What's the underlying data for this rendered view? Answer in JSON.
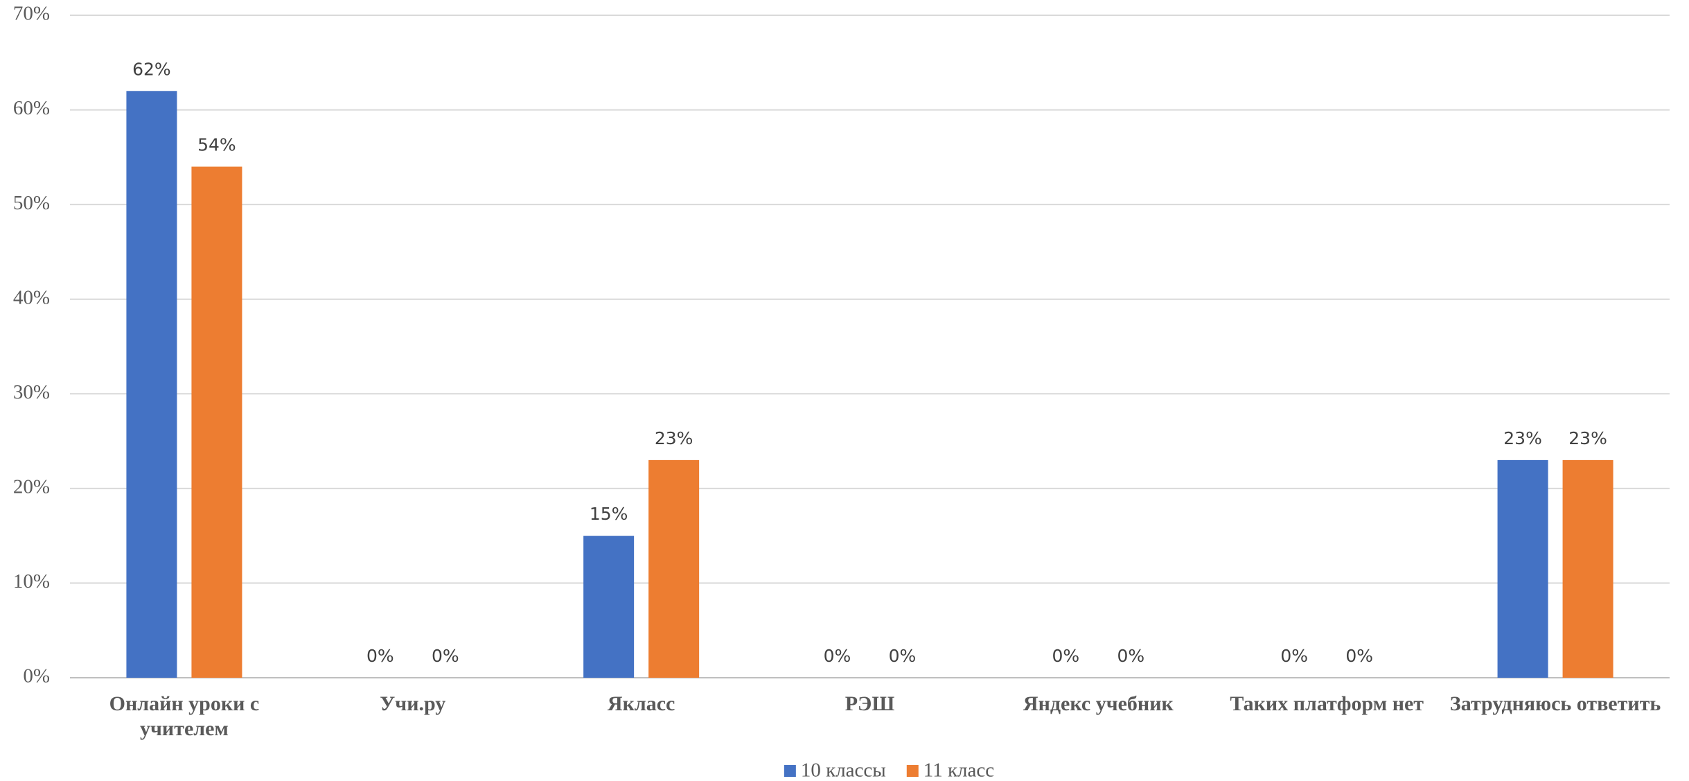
{
  "chart_data": {
    "type": "bar",
    "categories": [
      "Онлайн уроки с учителем",
      "Учи.ру",
      "Якласс",
      "РЭШ",
      "Яндекс учебник",
      "Таких платформ нет",
      "Затрудняюсь ответить"
    ],
    "series": [
      {
        "name": "10 классы",
        "color": "#4472c4",
        "values": [
          62,
          0,
          15,
          0,
          0,
          0,
          23
        ],
        "value_labels": [
          "62%",
          "0%",
          "15%",
          "0%",
          "0%",
          "0%",
          "23%"
        ]
      },
      {
        "name": "11 класс",
        "color": "#ed7d31",
        "values": [
          54,
          0,
          23,
          0,
          0,
          0,
          23
        ],
        "value_labels": [
          "54%",
          "0%",
          "23%",
          "0%",
          "0%",
          "0%",
          "23%"
        ]
      }
    ],
    "ylim": [
      0,
      70
    ],
    "yticks": [
      {
        "value": 0,
        "label": "0%"
      },
      {
        "value": 10,
        "label": "10%"
      },
      {
        "value": 20,
        "label": "20%"
      },
      {
        "value": 30,
        "label": "30%"
      },
      {
        "value": 40,
        "label": "40%"
      },
      {
        "value": 50,
        "label": "50%"
      },
      {
        "value": 60,
        "label": "60%"
      },
      {
        "value": 70,
        "label": "70%"
      }
    ],
    "grid": true,
    "legend": "bottom"
  }
}
